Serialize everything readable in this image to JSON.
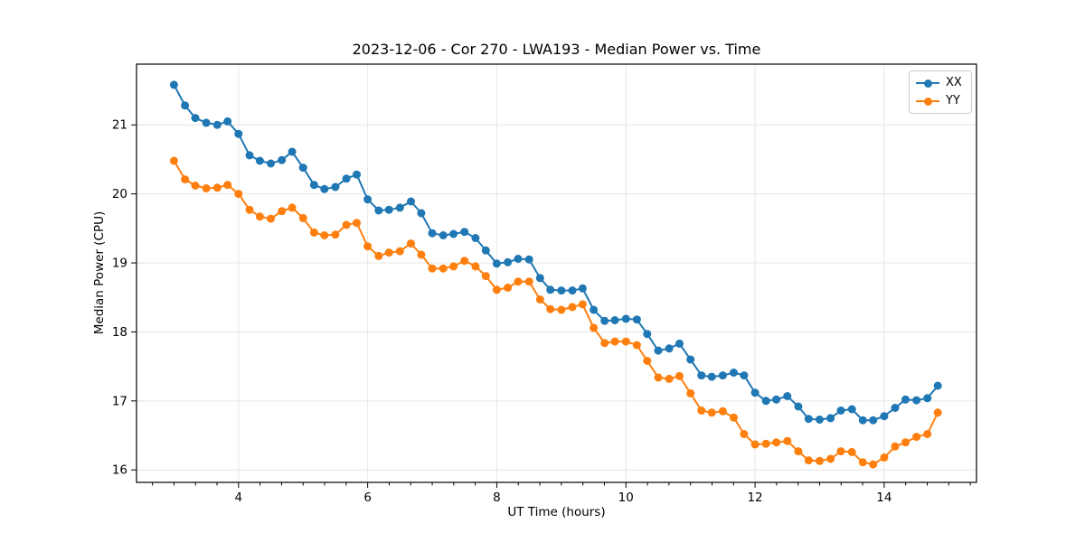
{
  "chart_data": {
    "type": "line",
    "title": "2023-12-06 - Cor 270 - LWA193 - Median Power vs. Time",
    "xlabel": "UT Time (hours)",
    "ylabel": "Median Power (CPU)",
    "x": [
      3.0,
      3.17,
      3.33,
      3.5,
      3.67,
      3.83,
      4.0,
      4.17,
      4.33,
      4.5,
      4.67,
      4.83,
      5.0,
      5.17,
      5.33,
      5.5,
      5.67,
      5.83,
      6.0,
      6.17,
      6.33,
      6.5,
      6.67,
      6.83,
      7.0,
      7.17,
      7.33,
      7.5,
      7.67,
      7.83,
      8.0,
      8.17,
      8.33,
      8.5,
      8.67,
      8.83,
      9.0,
      9.17,
      9.33,
      9.5,
      9.67,
      9.83,
      10.0,
      10.17,
      10.33,
      10.5,
      10.67,
      10.83,
      11.0,
      11.17,
      11.33,
      11.5,
      11.67,
      11.83,
      12.0,
      12.17,
      12.33,
      12.5,
      12.67,
      12.83,
      13.0,
      13.17,
      13.33,
      13.5,
      13.67,
      13.83,
      14.0,
      14.17,
      14.33,
      14.5,
      14.67,
      14.83
    ],
    "series": [
      {
        "name": "XX",
        "color": "#1f77b4",
        "values": [
          21.58,
          21.28,
          21.1,
          21.03,
          21.0,
          21.05,
          20.87,
          20.56,
          20.48,
          20.44,
          20.49,
          20.61,
          20.38,
          20.13,
          20.07,
          20.1,
          20.22,
          20.28,
          19.92,
          19.76,
          19.77,
          19.8,
          19.89,
          19.72,
          19.43,
          19.4,
          19.42,
          19.45,
          19.36,
          19.18,
          18.99,
          19.01,
          19.06,
          19.05,
          18.78,
          18.61,
          18.6,
          18.6,
          18.63,
          18.32,
          18.16,
          18.17,
          18.19,
          18.18,
          17.97,
          17.73,
          17.76,
          17.83,
          17.6,
          17.37,
          17.35,
          17.37,
          17.41,
          17.37,
          17.12,
          17.0,
          17.02,
          17.07,
          16.92,
          16.74,
          16.73,
          16.75,
          16.86,
          16.88,
          16.72,
          16.72,
          16.78,
          16.9,
          17.02,
          17.01,
          17.04,
          17.22
        ]
      },
      {
        "name": "YY",
        "color": "#ff7f0e",
        "values": [
          20.48,
          20.21,
          20.12,
          20.08,
          20.09,
          20.13,
          20.0,
          19.77,
          19.67,
          19.64,
          19.75,
          19.8,
          19.65,
          19.44,
          19.4,
          19.41,
          19.55,
          19.58,
          19.24,
          19.1,
          19.15,
          19.17,
          19.28,
          19.12,
          18.92,
          18.92,
          18.95,
          19.03,
          18.95,
          18.81,
          18.61,
          18.64,
          18.73,
          18.73,
          18.47,
          18.33,
          18.32,
          18.36,
          18.4,
          18.06,
          17.84,
          17.86,
          17.86,
          17.81,
          17.58,
          17.34,
          17.32,
          17.36,
          17.11,
          16.86,
          16.83,
          16.85,
          16.76,
          16.52,
          16.37,
          16.38,
          16.4,
          16.42,
          16.27,
          16.14,
          16.13,
          16.16,
          16.27,
          16.26,
          16.11,
          16.08,
          16.18,
          16.34,
          16.4,
          16.48,
          16.52,
          16.83
        ]
      }
    ],
    "xlim": [
      2.42,
      15.43
    ],
    "ylim": [
      15.82,
      21.88
    ],
    "x_major_ticks": [
      4,
      6,
      8,
      10,
      12,
      14
    ],
    "x_minor_tick_interval": 0.3333,
    "y_major_ticks": [
      16,
      17,
      18,
      19,
      20,
      21
    ],
    "grid": "major-only",
    "grid_color": "#e6e6e6",
    "spine_color": "#000000",
    "tick_color": "#000000",
    "background": "#ffffff",
    "legend_position": "upper right",
    "legend_border_color": "#cccccc",
    "marker": "circle"
  }
}
